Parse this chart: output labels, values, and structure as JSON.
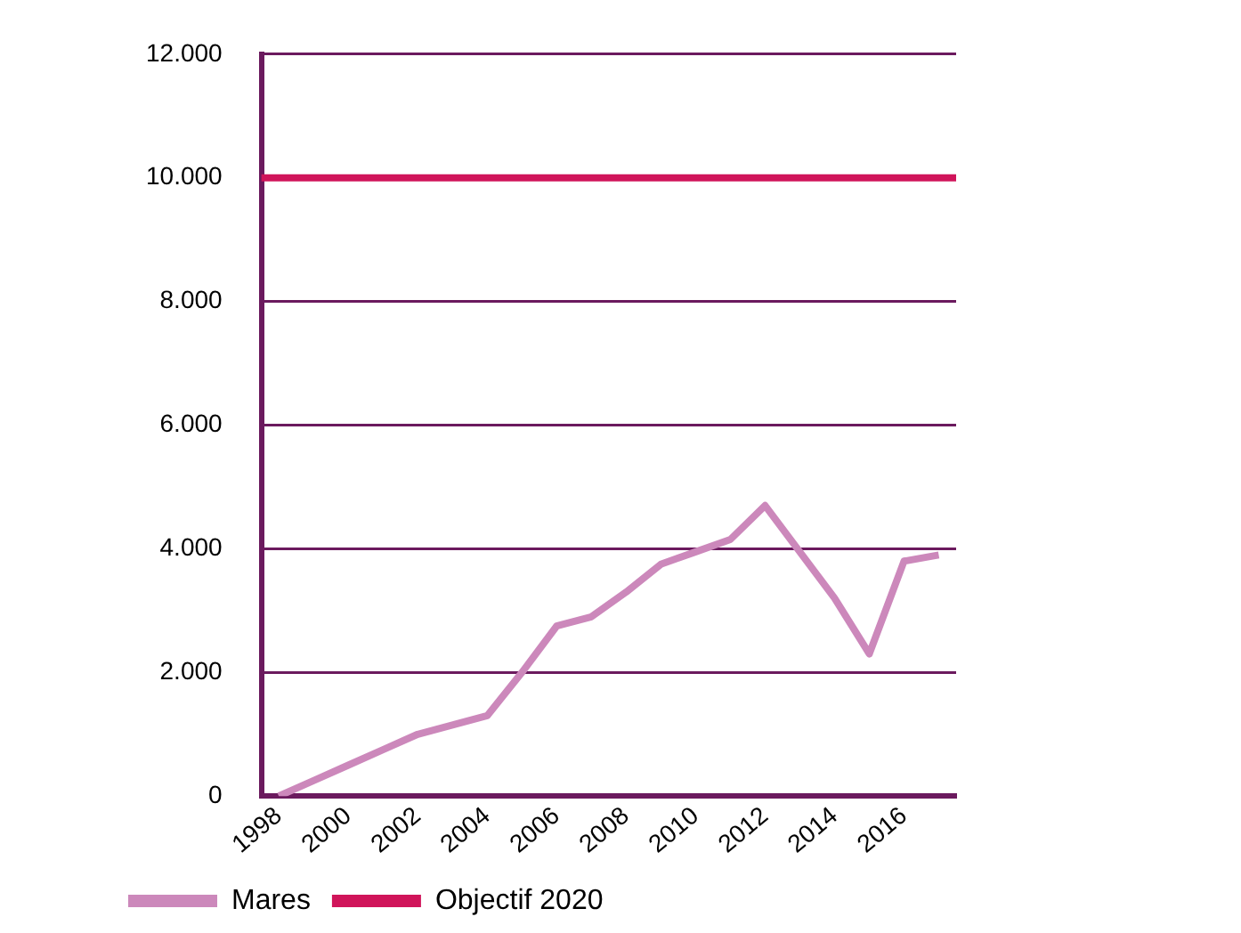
{
  "chart_data": {
    "type": "line",
    "categories": [
      "1998",
      null,
      "2000",
      null,
      "2002",
      null,
      "2004",
      null,
      "2006",
      null,
      "2008",
      null,
      "2010",
      null,
      "2012",
      null,
      "2014",
      null,
      "2016",
      null
    ],
    "series": [
      {
        "name": "Mares",
        "color": "#cc88bb",
        "values": [
          0,
          250,
          500,
          750,
          1000,
          1150,
          1300,
          2000,
          2750,
          2900,
          3300,
          3750,
          3950,
          4150,
          4700,
          3950,
          3200,
          2300,
          3800,
          3900
        ]
      }
    ],
    "ylim": [
      0,
      12000
    ],
    "yticks": [
      {
        "value": 0,
        "label": "0"
      },
      {
        "value": 2000,
        "label": "2.000"
      },
      {
        "value": 4000,
        "label": "4.000"
      },
      {
        "value": 6000,
        "label": "6.000"
      },
      {
        "value": 8000,
        "label": "8.000"
      },
      {
        "value": 10000,
        "label": "10.000"
      },
      {
        "value": 12000,
        "label": "12.000"
      }
    ],
    "ref_lines": [
      {
        "axis": "y",
        "value": 10000,
        "label": "Objectif 2020",
        "color": "#d0145a"
      }
    ],
    "grid": "y",
    "legend": "bottom",
    "marker": "none",
    "line_style": "solid"
  }
}
